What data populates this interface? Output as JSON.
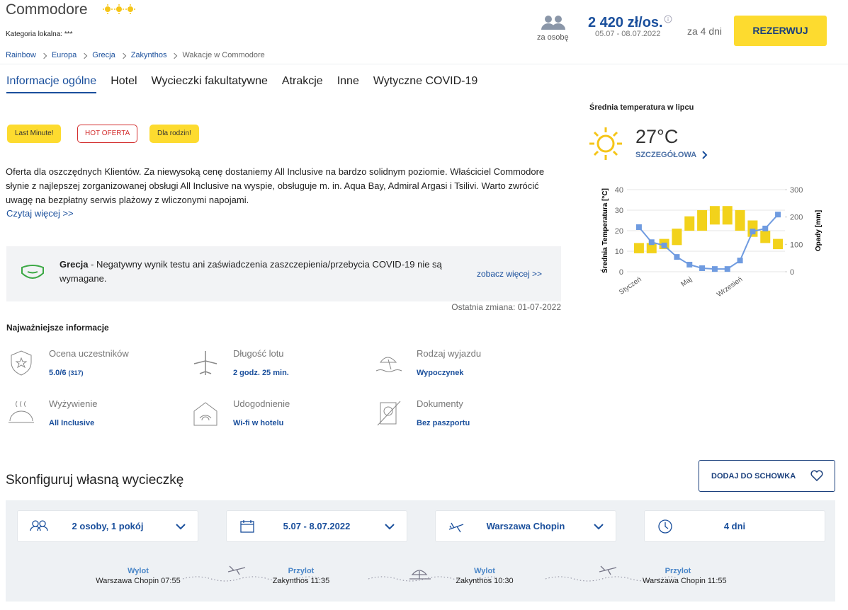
{
  "header": {
    "title": "Commodore",
    "category": "Kategoria lokalna: ***",
    "breadcrumbs": [
      "Rainbow",
      "Europa",
      "Grecja",
      "Zakynthos",
      "Wakacje w Commodore"
    ]
  },
  "price": {
    "per_person": "za osobę",
    "amount": "2 420 zł/os.",
    "dates": "05.07 - 08.07.2022",
    "duration": "za 4 dni",
    "button": "REZERWUJ"
  },
  "tabs": [
    "Informacje ogólne",
    "Hotel",
    "Wycieczki fakultatywne",
    "Atrakcje",
    "Inne",
    "Wytyczne COVID-19"
  ],
  "badges": [
    "Last Minute!",
    "HOT OFERTA",
    "Dla rodzin!"
  ],
  "description": {
    "text": "Oferta dla oszczędnych Klientów. Za niewysoką cenę dostaniemy All Inclusive na bardzo solidnym poziomie. Właściciel Commodore słynie z najlepszej zorganizowanej obsługi All Inclusive na wyspie, obsługuje m. in. Aqua Bay, Admiral Argasi i Tsilivi. Warto zwrócić uwagę na bezpłatny serwis plażowy z wliczonymi napojami.",
    "read_more": "Czytaj więcej >>"
  },
  "covid": {
    "country": "Grecja",
    "text": "- Negatywny wynik testu ani zaświadczenia zaszczepienia/przebycia COVID-19 nie są wymagane.",
    "link": "zobacz więcej >>",
    "last_change": "Ostatnia zmiana: 01-07-2022"
  },
  "key_info": {
    "title": "Najważniejsze informacje",
    "items": [
      {
        "label": "Ocena uczestników",
        "value": "5.0/6",
        "extra": "(317)"
      },
      {
        "label": "Długość lotu",
        "value": "2 godz. 25 min."
      },
      {
        "label": "Rodzaj wyjazdu",
        "value": "Wypoczynek"
      },
      {
        "label": "Wyżywienie",
        "value": "All Inclusive"
      },
      {
        "label": "Udogodnienie",
        "value": "Wi-fi w hotelu"
      },
      {
        "label": "Dokumenty",
        "value": "Bez paszportu"
      }
    ]
  },
  "weather": {
    "title": "Średnia temperatura w lipcu",
    "temperature": "27°C",
    "link": "SZCZEGÓŁOWA"
  },
  "chart_data": {
    "type": "combo",
    "ylabel": "Średnia Temperatura [°C]",
    "y2label": "Opady [mm]",
    "categories": [
      "Styczeń",
      null,
      null,
      null,
      "Maj",
      null,
      null,
      null,
      "Wrzesień",
      null,
      null,
      null
    ],
    "ylim": [
      0,
      40
    ],
    "yticks": [
      0,
      10,
      20,
      30,
      40
    ],
    "y2lim": [
      0,
      300
    ],
    "y2ticks": [
      0,
      100,
      200,
      300
    ],
    "grid": true,
    "series": [
      {
        "color": "#f2d21b",
        "low": [
          9,
          9,
          11,
          13,
          20,
          20,
          23,
          23,
          20,
          17,
          14,
          11
        ],
        "high": [
          14,
          14,
          16,
          21,
          27,
          30,
          32,
          32,
          30,
          25,
          20,
          16
        ]
      },
      {
        "color": "#6f9be0",
        "axis": "y2",
        "values": [
          163,
          108,
          96,
          54,
          26,
          13,
          10,
          10,
          41,
          147,
          158,
          209
        ]
      }
    ]
  },
  "configure": {
    "title": "Skonfiguruj własną wycieczkę",
    "save_button": "DODAJ DO SCHOWKA",
    "selectors": [
      "2 osoby, 1 pokój",
      "5.07 - 8.07.2022",
      "Warszawa Chopin",
      "4 dni"
    ],
    "legs": [
      {
        "label": "Wylot",
        "place": "Warszawa Chopin 07:55"
      },
      {
        "label": "Przylot",
        "place": "Zakynthos 11:35"
      },
      {
        "label": "Wylot",
        "place": "Zakynthos 10:30"
      },
      {
        "label": "Przylot",
        "place": "Warszawa Chopin 11:55"
      }
    ]
  }
}
